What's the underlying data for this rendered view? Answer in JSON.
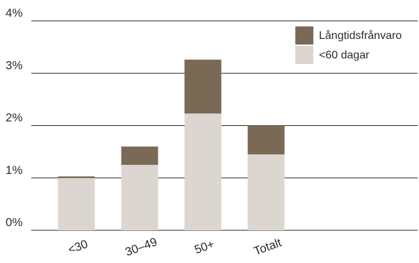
{
  "chart_data": {
    "type": "bar",
    "stacked": true,
    "categories": [
      "<30",
      "30–49",
      "50+",
      "Totalt"
    ],
    "series": [
      {
        "name": "<60 dagar",
        "color": "#dcd6d0",
        "values": [
          1.0,
          1.25,
          2.23,
          1.45
        ]
      },
      {
        "name": "Långtidsfrånvaro",
        "color": "#7a6a55",
        "values": [
          0.03,
          0.35,
          1.03,
          0.55
        ]
      }
    ],
    "yticks": [
      "0%",
      "1%",
      "2%",
      "3%",
      "4%"
    ],
    "ylim": [
      0,
      4
    ],
    "y_unit": "%",
    "grid": true,
    "legend_position": "top-right",
    "category_label_rotation": -20,
    "axis_color": "#222222"
  }
}
